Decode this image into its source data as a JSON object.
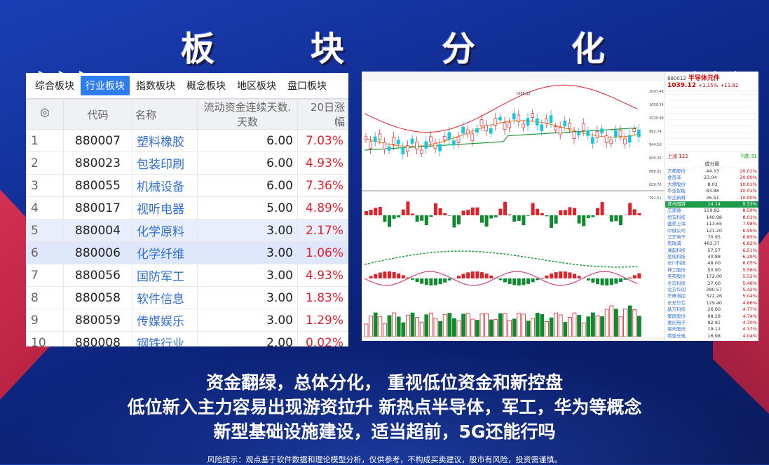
{
  "title": {
    "chars": [
      "板",
      "块",
      "分",
      "化"
    ],
    "left_arrows": "▶▶▶",
    "right_arrows": "◀◀◀"
  },
  "table": {
    "tabs": [
      "综合板块",
      "行业板块",
      "指数板块",
      "概念板块",
      "地区板块",
      "盘口板块"
    ],
    "active_tab": "行业板块",
    "headers": [
      "代码",
      "名称",
      "流动资金连续天数.天数",
      "20日涨幅"
    ],
    "rows": [
      {
        "idx": "1",
        "code": "880007",
        "name": "塑料橡胶",
        "days": "6.00",
        "pct": "7.03%"
      },
      {
        "idx": "2",
        "code": "880023",
        "name": "包装印刷",
        "days": "6.00",
        "pct": "4.93%"
      },
      {
        "idx": "3",
        "code": "880055",
        "name": "机械设备",
        "days": "6.00",
        "pct": "7.36%"
      },
      {
        "idx": "4",
        "code": "880017",
        "name": "视听电器",
        "days": "5.00",
        "pct": "4.89%"
      },
      {
        "idx": "5",
        "code": "880004",
        "name": "化学原料",
        "days": "3.00",
        "pct": "2.17%"
      },
      {
        "idx": "6",
        "code": "880006",
        "name": "化学纤维",
        "days": "3.00",
        "pct": "1.06%"
      },
      {
        "idx": "7",
        "code": "880056",
        "name": "国防军工",
        "days": "3.00",
        "pct": "4.93%"
      },
      {
        "idx": "8",
        "code": "880058",
        "name": "软件信息",
        "days": "3.00",
        "pct": "1.83%"
      },
      {
        "idx": "9",
        "code": "880059",
        "name": "传媒娱乐",
        "days": "3.00",
        "pct": "1.29%"
      },
      {
        "idx": "10",
        "code": "880008",
        "name": "钢铁行业",
        "days": "2.00",
        "pct": "0.02%"
      }
    ]
  },
  "chart": {
    "code": "880012",
    "name": "半导体元件",
    "price": "1039.12",
    "change": "+1.15%",
    "change_abs": "+11.82",
    "price_high_label": "1088.32",
    "up_count": "122",
    "down_count": "31",
    "section": "成分股",
    "stocks": [
      {
        "n": "方邦股份",
        "p": "44.03",
        "c": "20.01%"
      },
      {
        "n": "金百泽",
        "p": "23.04",
        "c": "20.00%"
      },
      {
        "n": "大港股份",
        "p": "8.02",
        "c": "10.01%"
      },
      {
        "n": "华亚智能",
        "p": "83.88",
        "c": "10.01%"
      },
      {
        "n": "华正新材",
        "p": "26.51",
        "c": "10.00%"
      },
      {
        "n": "苏州固锝",
        "p": "14.14",
        "c": "9.53%"
      },
      {
        "n": "芯源微",
        "p": "159.82",
        "c": "8.50%"
      },
      {
        "n": "恒玄科技",
        "p": "140.98",
        "c": "8.03%"
      },
      {
        "n": "盛美上海",
        "p": "113.65",
        "c": "7.98%"
      },
      {
        "n": "中微公司",
        "p": "121.20",
        "c": "6.95%"
      },
      {
        "n": "江丰电子",
        "p": "70.95",
        "c": "6.85%"
      },
      {
        "n": "思瑞浦",
        "p": "483.37",
        "c": "6.82%"
      },
      {
        "n": "澜起科技",
        "p": "57.57",
        "c": "6.51%"
      },
      {
        "n": "至纯科技",
        "p": "40.88",
        "c": "6.29%"
      },
      {
        "n": "长川科技",
        "p": "48.00",
        "c": "6.05%"
      },
      {
        "n": "神工股份",
        "p": "50.90",
        "c": "5.56%"
      },
      {
        "n": "圣邦股份",
        "p": "172.00",
        "c": "5.52%"
      },
      {
        "n": "全志科技",
        "p": "27.60",
        "c": "5.46%"
      },
      {
        "n": "北方华创",
        "p": "280.57",
        "c": "5.42%"
      },
      {
        "n": "华峰测控",
        "p": "322.26",
        "c": "5.04%"
      },
      {
        "n": "长光华芯",
        "p": "129.40",
        "c": "4.86%"
      },
      {
        "n": "晶方科技",
        "p": "26.60",
        "c": "4.77%"
      },
      {
        "n": "聚辰股份",
        "p": "98.28",
        "c": "4.74%"
      },
      {
        "n": "雅创电子",
        "p": "92.81",
        "c": "4.70%"
      },
      {
        "n": "易天股份",
        "p": "19.12",
        "c": "4.37%"
      },
      {
        "n": "南亚光电",
        "p": "16.98",
        "c": "4.04%"
      }
    ]
  },
  "bottom": {
    "line1": "资金翻绿，总体分化，  重视低位资金和新控盘",
    "line2": "低位新入主力容易出现游资拉升   新热点半导体，军工，华为等概念",
    "line3": "新型基础设施建设，适当超前，5G还能行吗",
    "risk": "风险提示：观点基于软件数据和理论模型分析，仅供参考，不构成买卖建议，股市有风险，投资需谨慎。"
  },
  "colors": {
    "up": "#e0202a",
    "down": "#0f8a30",
    "accent": "#2d7df0",
    "name_blue": "#2f6fd3"
  }
}
